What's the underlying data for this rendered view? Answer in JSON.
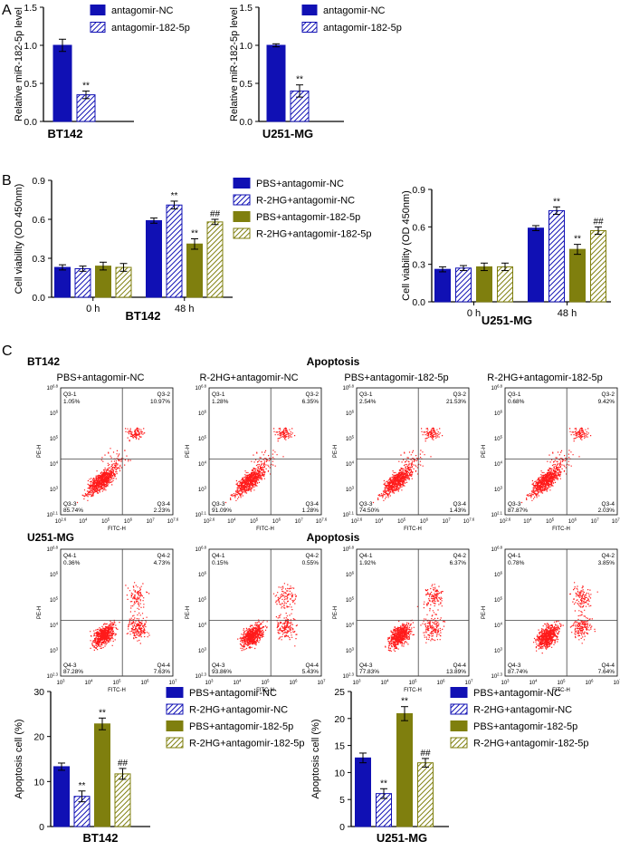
{
  "colors": {
    "blue": "#1010b4",
    "olive": "#7f7f0e",
    "dot": "#ff1a1a"
  },
  "panel_labels": {
    "a": "A",
    "b": "B",
    "c": "C"
  },
  "panel_c": {
    "apoptosis_title": "Apoptosis",
    "group_headers": [
      "PBS+antagomir-NC",
      "R-2HG+antagomir-NC",
      "PBS+antagomir-182-5p",
      "R-2HG+antagomir-182-5p"
    ]
  },
  "chart_data": [
    {
      "id": "A1",
      "type": "bar",
      "title": "BT142",
      "ylabel": "Relative miR-182-5p level",
      "ylim": [
        0,
        1.5
      ],
      "yticks": [
        0.0,
        0.5,
        1.0,
        1.5
      ],
      "series": [
        {
          "name": "antagomir-NC",
          "values": [
            1.0
          ],
          "errors": [
            0.08
          ],
          "sig": [
            ""
          ]
        },
        {
          "name": "antagomir-182-5p",
          "values": [
            0.35
          ],
          "errors": [
            0.05
          ],
          "sig": [
            "**"
          ]
        }
      ]
    },
    {
      "id": "A2",
      "type": "bar",
      "title": "U251-MG",
      "ylabel": "Relative miR-182-5p level",
      "ylim": [
        0,
        1.5
      ],
      "yticks": [
        0.0,
        0.5,
        1.0,
        1.5
      ],
      "series": [
        {
          "name": "antagomir-NC",
          "values": [
            1.0
          ],
          "errors": [
            0.02
          ],
          "sig": [
            ""
          ]
        },
        {
          "name": "antagomir-182-5p",
          "values": [
            0.4
          ],
          "errors": [
            0.08
          ],
          "sig": [
            "**"
          ]
        }
      ]
    },
    {
      "id": "B1",
      "type": "bar",
      "title": "BT142",
      "ylabel": "Cell viability (OD 450nm)",
      "ylim": [
        0,
        0.9
      ],
      "yticks": [
        0.0,
        0.3,
        0.6,
        0.9
      ],
      "categories": [
        "0 h",
        "48 h"
      ],
      "series": [
        {
          "name": "PBS+antagomir-NC",
          "values": [
            0.23,
            0.59
          ],
          "errors": [
            0.02,
            0.02
          ],
          "sig": [
            "",
            ""
          ]
        },
        {
          "name": "R-2HG+antagomir-NC",
          "values": [
            0.22,
            0.71
          ],
          "errors": [
            0.02,
            0.03
          ],
          "sig": [
            "",
            "**"
          ]
        },
        {
          "name": "PBS+antagomir-182-5p",
          "values": [
            0.24,
            0.41
          ],
          "errors": [
            0.03,
            0.04
          ],
          "sig": [
            "",
            "**"
          ]
        },
        {
          "name": "R-2HG+antagomir-182-5p",
          "values": [
            0.23,
            0.58
          ],
          "errors": [
            0.03,
            0.02
          ],
          "sig": [
            "",
            "##"
          ]
        }
      ]
    },
    {
      "id": "B2",
      "type": "bar",
      "title": "U251-MG",
      "ylabel": "Cell viability (OD 450nm)",
      "ylim": [
        0,
        0.9
      ],
      "yticks": [
        0.0,
        0.3,
        0.6,
        0.9
      ],
      "categories": [
        "0 h",
        "48 h"
      ],
      "series": [
        {
          "name": "PBS+antagomir-NC",
          "values": [
            0.26,
            0.59
          ],
          "errors": [
            0.02,
            0.02
          ],
          "sig": [
            "",
            ""
          ]
        },
        {
          "name": "R-2HG+antagomir-NC",
          "values": [
            0.27,
            0.73
          ],
          "errors": [
            0.02,
            0.03
          ],
          "sig": [
            "",
            "**"
          ]
        },
        {
          "name": "PBS+antagomir-182-5p",
          "values": [
            0.28,
            0.42
          ],
          "errors": [
            0.03,
            0.04
          ],
          "sig": [
            "",
            "**"
          ]
        },
        {
          "name": "R-2HG+antagomir-182-5p",
          "values": [
            0.28,
            0.57
          ],
          "errors": [
            0.03,
            0.03
          ],
          "sig": [
            "",
            "##"
          ]
        }
      ]
    },
    {
      "id": "C_BT142",
      "type": "scatter",
      "title": "BT142",
      "xlabel": "FITC-H",
      "ylabel": "PE-H",
      "xticks": [
        "10^2.6",
        "10^4",
        "10^5",
        "10^6",
        "10^7",
        "10^7.6"
      ],
      "yticks": [
        "10^2.1",
        "10^3",
        "10^4",
        "10^5",
        "10^6",
        "10^6.8"
      ],
      "plots": [
        {
          "group": "PBS+antagomir-NC",
          "q1": "Q3-1",
          "q1v": "1.05%",
          "q2": "Q3-2",
          "q2v": "10.97%",
          "q3": "Q3-3",
          "q3v": "85.74%",
          "q4": "Q3-4",
          "q4v": "2.23%"
        },
        {
          "group": "R-2HG+antagomir-NC",
          "q1": "Q3-1",
          "q1v": "1.28%",
          "q2": "Q3-2",
          "q2v": "6.35%",
          "q3": "Q3-3",
          "q3v": "91.09%",
          "q4": "Q3-4",
          "q4v": "1.28%"
        },
        {
          "group": "PBS+antagomir-182-5p",
          "q1": "Q3-1",
          "q1v": "2.54%",
          "q2": "Q3-2",
          "q2v": "21.53%",
          "q3": "Q3-3",
          "q3v": "74.50%",
          "q4": "Q3-4",
          "q4v": "1.43%"
        },
        {
          "group": "R-2HG+antagomir-182-5p",
          "q1": "Q3-1",
          "q1v": "0.68%",
          "q2": "Q3-2",
          "q2v": "9.42%",
          "q3": "Q3-3",
          "q3v": "87.87%",
          "q4": "Q3-4",
          "q4v": "2.03%"
        }
      ]
    },
    {
      "id": "C_U251",
      "type": "scatter",
      "title": "U251-MG",
      "xlabel": "FITC-H",
      "ylabel": "PE-H",
      "xticks": [
        "10^3",
        "10^4",
        "10^5",
        "10^6",
        "10^7"
      ],
      "yticks": [
        "10^2.3",
        "10^3",
        "10^4",
        "10^5",
        "10^6",
        "10^6.8"
      ],
      "plots": [
        {
          "group": "PBS+antagomir-NC",
          "q1": "Q4-1",
          "q1v": "0.36%",
          "q2": "Q4-2",
          "q2v": "4.73%",
          "q3": "Q4-3",
          "q3v": "87.28%",
          "q4": "Q4-4",
          "q4v": "7.63%"
        },
        {
          "group": "R-2HG+antagomir-NC",
          "q1": "Q4-1",
          "q1v": "0.15%",
          "q2": "Q4-2",
          "q2v": "0.55%",
          "q3": "Q4-3",
          "q3v": "93.86%",
          "q4": "Q4-4",
          "q4v": "5.43%"
        },
        {
          "group": "PBS+antagomir-182-5p",
          "q1": "Q4-1",
          "q1v": "1.92%",
          "q2": "Q4-2",
          "q2v": "6.37%",
          "q3": "Q4-3",
          "q3v": "77.83%",
          "q4": "Q4-4",
          "q4v": "13.89%"
        },
        {
          "group": "R-2HG+antagomir-182-5p",
          "q1": "Q4-1",
          "q1v": "0.78%",
          "q2": "Q4-2",
          "q2v": "3.85%",
          "q3": "Q4-3",
          "q3v": "87.74%",
          "q4": "Q4-4",
          "q4v": "7.64%"
        }
      ]
    },
    {
      "id": "C1",
      "type": "bar",
      "title": "BT142",
      "ylabel": "Apoptosis cell (%)",
      "ylim": [
        0,
        30
      ],
      "yticks": [
        0,
        10,
        20,
        30
      ],
      "series": [
        {
          "name": "PBS+antagomir-NC",
          "values": [
            13.3
          ],
          "errors": [
            0.8
          ],
          "sig": [
            ""
          ]
        },
        {
          "name": "R-2HG+antagomir-NC",
          "values": [
            6.7
          ],
          "errors": [
            1.2
          ],
          "sig": [
            "**"
          ]
        },
        {
          "name": "PBS+antagomir-182-5p",
          "values": [
            22.8
          ],
          "errors": [
            1.3
          ],
          "sig": [
            "**"
          ]
        },
        {
          "name": "R-2HG+antagomir-182-5p",
          "values": [
            11.7
          ],
          "errors": [
            1.2
          ],
          "sig": [
            "##"
          ]
        }
      ]
    },
    {
      "id": "C2",
      "type": "bar",
      "title": "U251-MG",
      "ylabel": "Apoptosis cell (%)",
      "ylim": [
        0,
        25
      ],
      "yticks": [
        0,
        5,
        10,
        15,
        20,
        25
      ],
      "series": [
        {
          "name": "PBS+antagomir-NC",
          "values": [
            12.7
          ],
          "errors": [
            0.9
          ],
          "sig": [
            ""
          ]
        },
        {
          "name": "R-2HG+antagomir-NC",
          "values": [
            6.1
          ],
          "errors": [
            0.9
          ],
          "sig": [
            "**"
          ]
        },
        {
          "name": "PBS+antagomir-182-5p",
          "values": [
            20.9
          ],
          "errors": [
            1.3
          ],
          "sig": [
            "**"
          ]
        },
        {
          "name": "R-2HG+antagomir-182-5p",
          "values": [
            11.8
          ],
          "errors": [
            0.8
          ],
          "sig": [
            "##"
          ]
        }
      ]
    }
  ]
}
